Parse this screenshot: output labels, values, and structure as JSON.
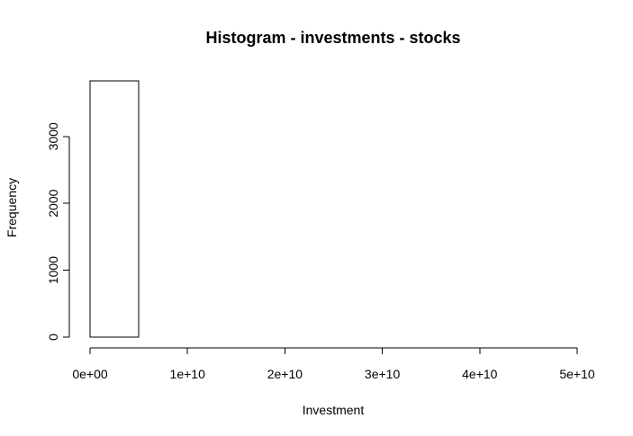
{
  "chart_data": {
    "type": "bar",
    "title": "Histogram - investments - stocks",
    "xlabel": "Investment",
    "ylabel": "Frequency",
    "xlim": [
      0,
      50000000000
    ],
    "ylim": [
      0,
      3830
    ],
    "x_ticks": [
      {
        "value": 0,
        "label": "0e+00"
      },
      {
        "value": 10000000000,
        "label": "1e+10"
      },
      {
        "value": 20000000000,
        "label": "2e+10"
      },
      {
        "value": 30000000000,
        "label": "3e+10"
      },
      {
        "value": 40000000000,
        "label": "4e+10"
      },
      {
        "value": 50000000000,
        "label": "5e+10"
      }
    ],
    "y_ticks": [
      {
        "value": 0,
        "label": "0"
      },
      {
        "value": 1000,
        "label": "1000"
      },
      {
        "value": 2000,
        "label": "2000"
      },
      {
        "value": 3000,
        "label": "3000"
      }
    ],
    "bins": [
      {
        "start": 0,
        "end": 5000000000,
        "count": 3830
      },
      {
        "start": 5000000000,
        "end": 10000000000,
        "count": 0
      },
      {
        "start": 10000000000,
        "end": 15000000000,
        "count": 0
      },
      {
        "start": 15000000000,
        "end": 20000000000,
        "count": 0
      },
      {
        "start": 20000000000,
        "end": 25000000000,
        "count": 0
      },
      {
        "start": 25000000000,
        "end": 30000000000,
        "count": 0
      },
      {
        "start": 30000000000,
        "end": 35000000000,
        "count": 0
      },
      {
        "start": 35000000000,
        "end": 40000000000,
        "count": 0
      },
      {
        "start": 40000000000,
        "end": 45000000000,
        "count": 0
      },
      {
        "start": 45000000000,
        "end": 50000000000,
        "count": 0
      }
    ],
    "bar_fill": "#ffffff",
    "bar_stroke": "#000000",
    "grid": false,
    "legend": "none"
  }
}
